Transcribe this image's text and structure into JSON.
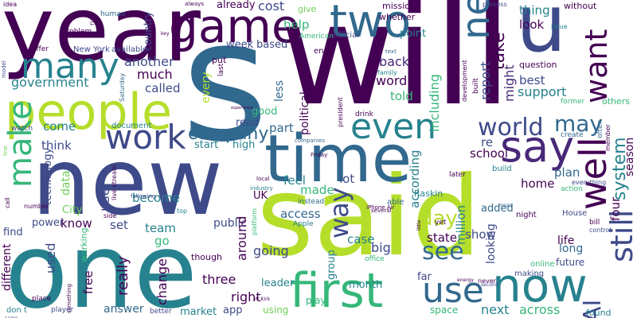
{
  "palette": {
    "deep_purple": "#440154",
    "indigo": "#482878",
    "blue": "#3e4a89",
    "slate": "#31688e",
    "teal": "#26828e",
    "green_teal": "#1f9e89",
    "green": "#35b779",
    "lime": "#6ece58",
    "yellow_green": "#b5de2b",
    "yellow": "#fde725"
  },
  "words": {
    "w_year": "year",
    "w_will": "will",
    "w_s": "s",
    "w_new": "new",
    "w_one": "one",
    "w_said": "said",
    "w_time": "time",
    "w_game": "game",
    "w_two": "two",
    "w_people": "people",
    "w_many": "many",
    "w_u": "u",
    "w_need": "need",
    "w_want": "want",
    "w_say": "say",
    "w_even": "even",
    "w_work": "work",
    "w_make": "make",
    "w_world": "world",
    "w_may": "may",
    "w_well": "well",
    "w_still": "still",
    "w_system": "system",
    "w_first": "first",
    "w_now": "now",
    "w_use": "use",
    "w_ai": "AI",
    "w_day": "day",
    "w_way": "way",
    "w_see": "see",
    "w_company": "company",
    "w_government": "government",
    "w_another": "another",
    "w_much": "much",
    "w_called": "called",
    "w_come": "come",
    "w_think": "think",
    "w_technology": "technology",
    "w_data": "data",
    "w_user": "user",
    "w_become": "become",
    "w_know": "know",
    "w_set": "set",
    "w_team": "team",
    "w_really": "really",
    "w_go": "go",
    "w_change": "change",
    "w_three": "three",
    "w_used": "used",
    "w_free": "free",
    "w_answer": "answer",
    "w_find": "find",
    "w_different": "different",
    "w_part": "part",
    "w_made": "made",
    "w_feel": "feel",
    "w_around": "around",
    "w_going": "going",
    "w_right": "right",
    "w_case": "case",
    "w_access": "access",
    "w_lot": "lot",
    "w_according": "according",
    "w_including": "including",
    "w_report": "report",
    "w_take": "take",
    "w_might": "might",
    "w_back": "back",
    "w_word": "word",
    "w_told": "told",
    "w_support": "support",
    "w_best": "best",
    "w_thing": "thing",
    "w_look": "look",
    "w_point": "point",
    "w_help": "help",
    "w_cost": "cost",
    "w_week": "week",
    "w_based": "based",
    "w_already": "already",
    "w_million": "million",
    "w_state": "state",
    "w_show": "show",
    "w_home": "home",
    "w_life": "life",
    "w_long": "long",
    "w_plan": "plan",
    "w_school": "school",
    "w_re": "re",
    "w_big": "big",
    "w_across": "across",
    "w_next": "next",
    "w_month": "month",
    "w_leader": "leader",
    "w_far": "far",
    "w_looking": "looking",
    "w_four": "four",
    "w_season": "season",
    "w_others": "others",
    "w_added": "added",
    "w_start": "start",
    "w_read": "read",
    "w_high": "high",
    "w_good": "good",
    "w_every": "every",
    "w_less": "less",
    "w_political": "political",
    "w_group": "group",
    "w_public": "public",
    "w_uk": "UK",
    "w_city": "City",
    "w_working": "working",
    "w_power": "power",
    "w_market": "market",
    "w_app": "app",
    "w_using": "using",
    "w_play": "play",
    "w_space": "space",
    "w_found": "found",
    "w_though": "though",
    "w_future": "future",
    "w_online": "online",
    "w_making": "making",
    "w_mission": "mission",
    "w_whether": "whether",
    "w_without": "without",
    "w_give": "give",
    "w_country": "country",
    "w_human": "human",
    "w_new_york": "New York",
    "w_available": "available",
    "w_american": "American",
    "w_official": "official",
    "w_offer": "offer",
    "w_problem": "problem",
    "w_idea": "idea",
    "w_run": "run",
    "w_always": "always",
    "w_end": "end",
    "w_put": "put",
    "w_last": "last",
    "w_document": "document",
    "w_watch": "watch",
    "w_saturday": "Saturday",
    "w_model": "model",
    "w_experience": "experience",
    "w_president": "president",
    "w_friday": "Friday",
    "w_drink": "drink",
    "w_companies": "companies",
    "w_text": "text",
    "w_family": "family",
    "w_development": "development",
    "w_built": "built",
    "w_process": "process",
    "w_issue": "issue",
    "w_question": "question",
    "w_former": "former",
    "w_able": "able",
    "w_iphone_air": "iPhone Air",
    "w_raskin": "Raskin",
    "w_later": "later",
    "w_yet": "yet",
    "w_build": "build",
    "w_night": "night",
    "w_create": "create",
    "w_member": "member",
    "w_often": "often",
    "w_everything": "everything",
    "w_action": "action",
    "w_house": "House",
    "w_bill": "bill",
    "w_control": "control",
    "w_mean": "mean",
    "w_several": "several",
    "w_office": "office",
    "w_instead": "instead",
    "w_local": "local",
    "w_industry": "industry",
    "w_platform": "platform",
    "w_apple": "Apple",
    "w_little": "little",
    "w_side": "side",
    "w_top": "top",
    "w_following": "following",
    "w_live_stream": "live stream",
    "w_number": "number",
    "w_line": "line",
    "w_call": "call",
    "w_place": "place",
    "w_something": "something",
    "w_mr_kirk": "Mr Kirk",
    "w_player": "player",
    "w_better": "better",
    "w_don_t": "don t",
    "w_came": "came",
    "w_never": "never",
    "w_second": "second",
    "w_energy": "energy",
    "w_key": "key"
  }
}
